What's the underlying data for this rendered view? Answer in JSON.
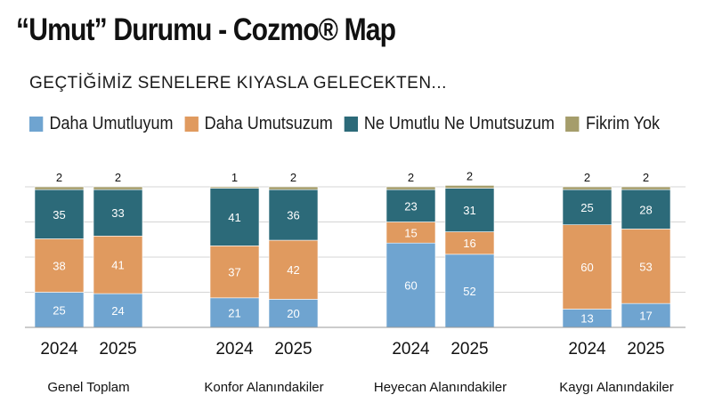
{
  "title": "“Umut” Durumu - Cozmo® Map",
  "subtitle": "GEÇTİĞİMİZ SENELERE KIYASLA GELECEKTEN...",
  "colors": {
    "daha_umutluyum": "#6fa4d0",
    "daha_umutsuzum": "#e09a5f",
    "ne_umutlu": "#2c6a79",
    "fikrim_yok": "#a59d6b"
  },
  "legend": [
    {
      "label": "Daha Umutluyum",
      "color": "#6fa4d0"
    },
    {
      "label": "Daha Umutsuzum",
      "color": "#e09a5f"
    },
    {
      "label": "Ne Umutlu Ne Umutsuzum",
      "color": "#2c6a79"
    },
    {
      "label": "Fikrim Yok",
      "color": "#a59d6b"
    }
  ],
  "chart_data": {
    "type": "bar",
    "stacked": true,
    "groups": [
      "Genel Toplam",
      "Konfor Alanındakiler",
      "Heyecan Alanındakiler",
      "Kaygı Alanındakiler"
    ],
    "categories": [
      "2024",
      "2025"
    ],
    "series": [
      {
        "name": "Daha Umutluyum",
        "color": "#6fa4d0",
        "values": [
          [
            25,
            24
          ],
          [
            21,
            20
          ],
          [
            60,
            52
          ],
          [
            13,
            17
          ]
        ]
      },
      {
        "name": "Daha Umutsuzum",
        "color": "#e09a5f",
        "values": [
          [
            38,
            41
          ],
          [
            37,
            42
          ],
          [
            15,
            16
          ],
          [
            60,
            53
          ]
        ]
      },
      {
        "name": "Ne Umutlu Ne Umutsuzum",
        "color": "#2c6a79",
        "values": [
          [
            35,
            33
          ],
          [
            41,
            36
          ],
          [
            23,
            31
          ],
          [
            25,
            28
          ]
        ]
      },
      {
        "name": "Fikrim Yok",
        "color": "#a59d6b",
        "values": [
          [
            2,
            2
          ],
          [
            1,
            2
          ],
          [
            2,
            2
          ],
          [
            2,
            2
          ]
        ]
      }
    ],
    "ylim": [
      0,
      100
    ],
    "grid": true,
    "legend_position": "top"
  }
}
